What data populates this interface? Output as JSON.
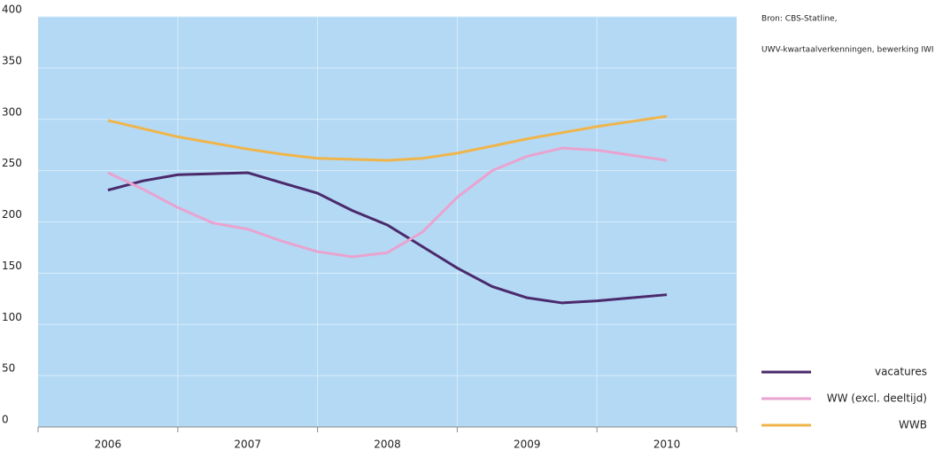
{
  "chart_data": {
    "type": "line",
    "source": [
      "Bron: CBS-Statline,",
      "UWV-kwartaalverkenningen, bewerking IWI"
    ],
    "categories": [
      "2006",
      null,
      null,
      null,
      "2007",
      null,
      null,
      null,
      "2008",
      null,
      null,
      null,
      "2009",
      null,
      null,
      null,
      "2010"
    ],
    "series": [
      {
        "name": "vacatures",
        "color": "#4b2a6b",
        "values": [
          231,
          240,
          246,
          247,
          248,
          238,
          228,
          211,
          197,
          176,
          155,
          137,
          126,
          121,
          123,
          126,
          129
        ]
      },
      {
        "name": "WW (excl. deeltijd)",
        "color": "#e9a3cf",
        "values": [
          248,
          232,
          214,
          199,
          193,
          181,
          171,
          166,
          170,
          190,
          224,
          250,
          264,
          272,
          270,
          265,
          260
        ]
      },
      {
        "name": "WWB",
        "color": "#f0b54a",
        "values": [
          299,
          291,
          283,
          277,
          271,
          266,
          262,
          261,
          260,
          262,
          267,
          274,
          281,
          287,
          293,
          298,
          303
        ]
      }
    ],
    "ylim": [
      0,
      400
    ],
    "yticks": [
      0,
      50,
      100,
      150,
      200,
      250,
      300,
      350,
      400
    ],
    "grid": true,
    "background": "#b3d9f5",
    "legend": "bottom-right"
  }
}
